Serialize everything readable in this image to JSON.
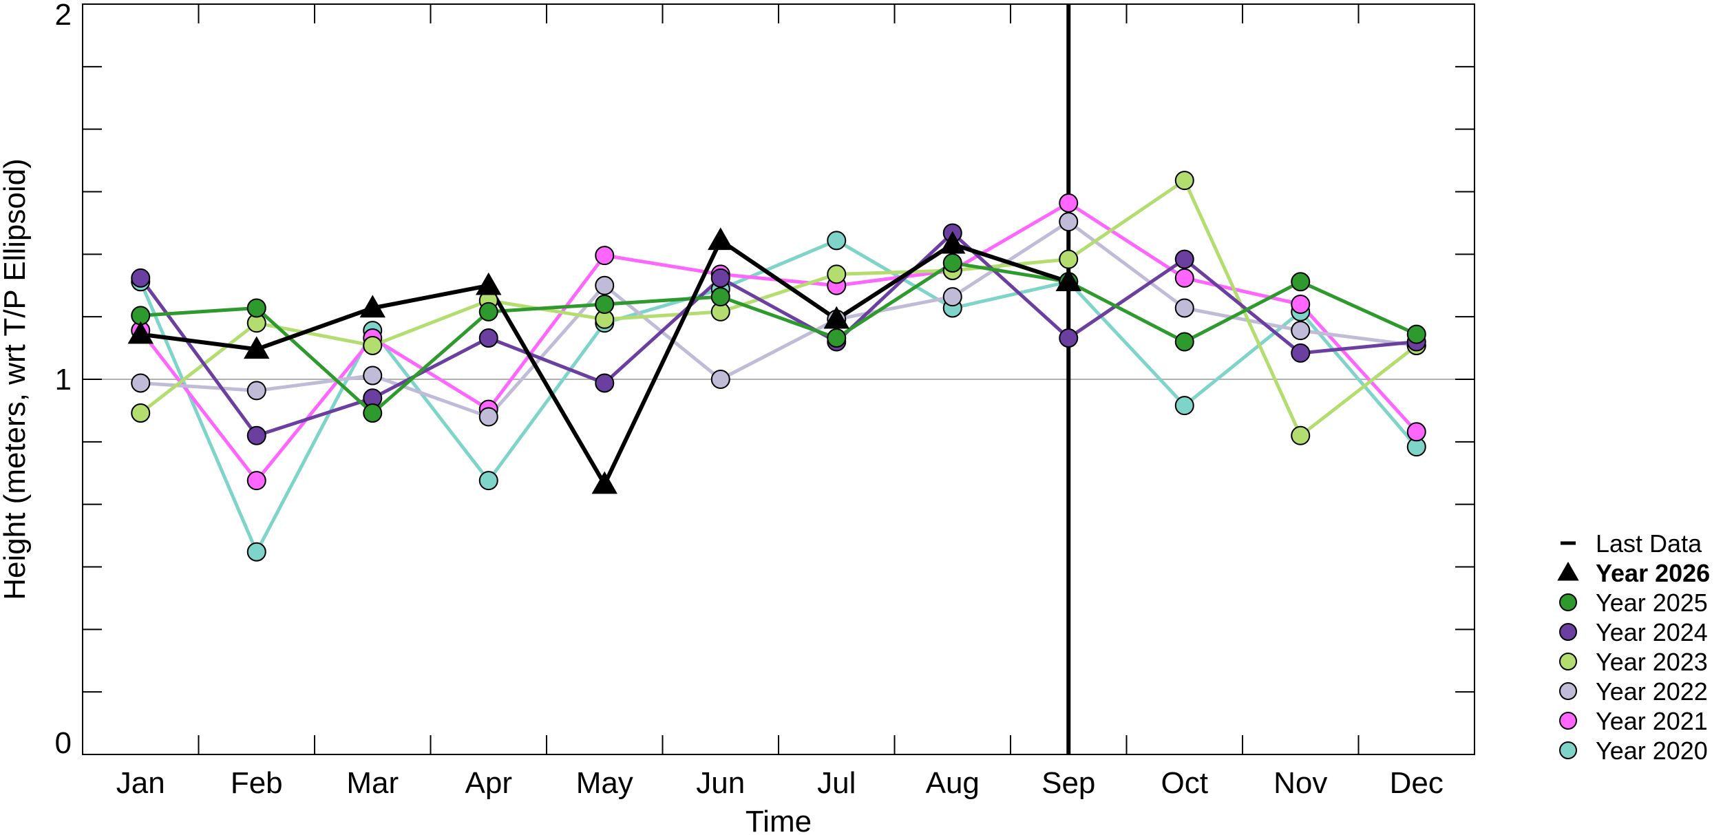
{
  "chart_data": {
    "type": "line",
    "title": "",
    "xlabel": "Time",
    "ylabel": "Height (meters, wrt T/P Ellipsoid)",
    "ylim": [
      0,
      2
    ],
    "yticks": [
      0,
      1,
      2
    ],
    "ytick_labels": [
      "0",
      "1",
      "2"
    ],
    "categories": [
      "Jan",
      "Feb",
      "Mar",
      "Apr",
      "May",
      "Jun",
      "Jul",
      "Aug",
      "Sep",
      "Oct",
      "Nov",
      "Dec"
    ],
    "reference_line": 1,
    "grid": false,
    "legend_position": "right",
    "last_data": {
      "label": "Last Data",
      "month": "Sep",
      "color": "#000000"
    },
    "series": [
      {
        "name": "Year 2020",
        "color": "#7fd4c9",
        "marker": "circle",
        "bold": false,
        "values": [
          1.26,
          0.54,
          1.13,
          0.73,
          1.15,
          1.24,
          1.37,
          1.19,
          1.26,
          0.93,
          1.18,
          0.82
        ]
      },
      {
        "name": "Year 2021",
        "color": "#ff66ff",
        "marker": "circle",
        "bold": false,
        "values": [
          1.13,
          0.73,
          1.11,
          0.92,
          1.33,
          1.28,
          1.25,
          1.29,
          1.47,
          1.27,
          1.2,
          0.86
        ]
      },
      {
        "name": "Year 2022",
        "color": "#c0bcd8",
        "marker": "circle",
        "bold": false,
        "values": [
          0.99,
          0.97,
          1.01,
          0.9,
          1.25,
          1.0,
          1.16,
          1.22,
          1.42,
          1.19,
          1.13,
          1.09
        ]
      },
      {
        "name": "Year 2023",
        "color": "#b4dd70",
        "marker": "circle",
        "bold": false,
        "values": [
          0.91,
          1.15,
          1.09,
          1.21,
          1.16,
          1.18,
          1.28,
          1.29,
          1.32,
          1.53,
          0.85,
          1.09
        ]
      },
      {
        "name": "Year 2024",
        "color": "#6b3fa0",
        "marker": "circle",
        "bold": false,
        "values": [
          1.27,
          0.85,
          0.95,
          1.11,
          0.99,
          1.27,
          1.1,
          1.39,
          1.11,
          1.32,
          1.07,
          1.1
        ]
      },
      {
        "name": "Year 2025",
        "color": "#2e9a2e",
        "marker": "circle",
        "bold": false,
        "values": [
          1.17,
          1.19,
          0.91,
          1.18,
          1.2,
          1.22,
          1.11,
          1.31,
          1.26,
          1.1,
          1.26,
          1.12
        ]
      },
      {
        "name": "Year 2026",
        "color": "#000000",
        "marker": "triangle",
        "bold": true,
        "values": [
          1.12,
          1.08,
          1.19,
          1.25,
          0.72,
          1.37,
          1.16,
          1.36,
          1.26,
          null,
          null,
          null
        ]
      }
    ]
  }
}
